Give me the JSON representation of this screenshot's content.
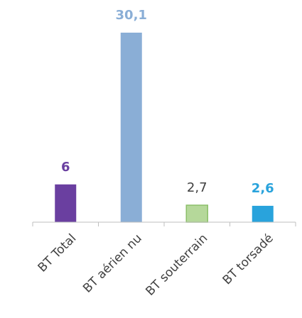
{
  "chart_data": {
    "type": "bar",
    "categories": [
      "BT Total",
      "BT aérien nu",
      "BT souterrain",
      "BT torsadé"
    ],
    "values": [
      6,
      30.1,
      2.7,
      2.6
    ],
    "value_labels": [
      "6",
      "30,1",
      "2,7",
      "2,6"
    ],
    "colors": [
      "#6a3fa0",
      "#8aaed6",
      "#b5d89a",
      "#29a3dc"
    ],
    "label_colors": [
      "#6a3fa0",
      "#8aaed6",
      "#404040",
      "#29a3dc"
    ],
    "grid": false
  }
}
